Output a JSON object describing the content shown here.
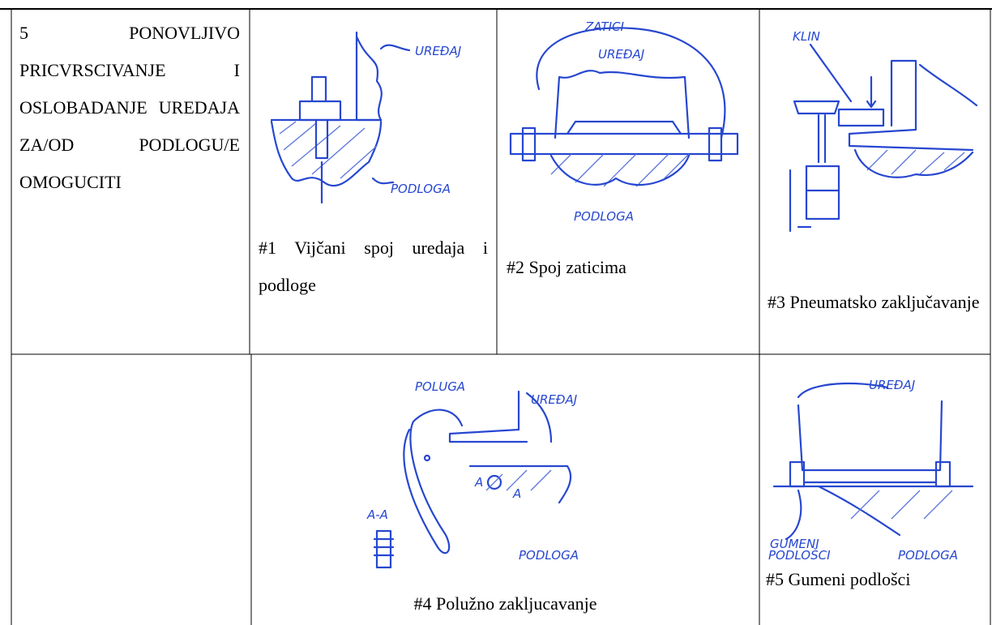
{
  "table": {
    "rows": [
      {
        "requirement": "5 PONOVLJIVO PRICVRSCIVANJE I OSLOBADANJE UREDAJA ZA/OD PODLOGU/E OMOGUCITI",
        "solutions": [
          {
            "caption": "#1 Vijčani spoj uredaja i podloge",
            "labels": [
              "UREĐAJ",
              "PODLOGA"
            ]
          },
          {
            "caption": "#2 Spoj zaticima",
            "labels": [
              "ZATICI",
              "UREĐAJ",
              "PODLOGA"
            ]
          },
          {
            "caption": "#3 Pneumatsko zaključavanje",
            "labels": [
              "KLIN"
            ]
          }
        ]
      },
      {
        "solutions": [
          {
            "caption": "#4 Polužno zakljucavanje",
            "labels": [
              "POLUGA",
              "UREĐAJ",
              "PODLOGA",
              "A-A",
              "A",
              "A"
            ]
          },
          {
            "caption": "#5 Gumeni podlošci",
            "labels": [
              "UREĐAJ",
              "GUMENI",
              "PODLOŠCI",
              "PODLOGA"
            ]
          }
        ]
      }
    ]
  }
}
